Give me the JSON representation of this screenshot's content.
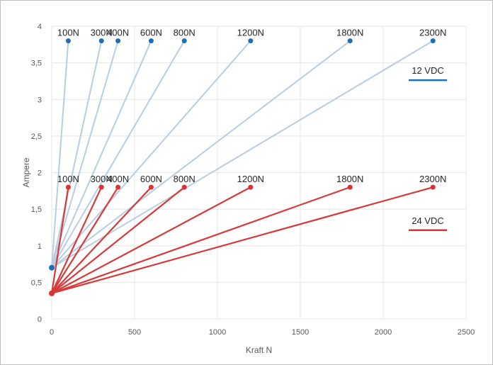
{
  "chart_data": {
    "type": "line",
    "title": "",
    "xlabel": "Kraft N",
    "ylabel": "Ampere",
    "xlim": [
      0,
      2500
    ],
    "ylim": [
      0,
      4
    ],
    "xticks": [
      0,
      500,
      1000,
      1500,
      2000,
      2500
    ],
    "yticks": [
      0,
      0.5,
      1,
      1.5,
      2,
      2.5,
      3,
      3.5,
      4
    ],
    "ytick_labels": [
      "0",
      "0,5",
      "1",
      "1,5",
      "2",
      "2,5",
      "3",
      "3,5",
      "4"
    ],
    "grid": true,
    "colors": {
      "12VDC": "#1f6fb5",
      "24VDC": "#e03030",
      "line12": "#b8cde0",
      "line24": "#d63a3a"
    },
    "series": [
      {
        "name": "12 VDC",
        "origin": [
          0,
          0.7
        ],
        "points": [
          {
            "label": "100N",
            "x": 100,
            "y": 3.8
          },
          {
            "label": "300N",
            "x": 300,
            "y": 3.8
          },
          {
            "label": "400N",
            "x": 400,
            "y": 3.8
          },
          {
            "label": "600N",
            "x": 600,
            "y": 3.8
          },
          {
            "label": "800N",
            "x": 800,
            "y": 3.8
          },
          {
            "label": "1200N",
            "x": 1200,
            "y": 3.8
          },
          {
            "label": "1800N",
            "x": 1800,
            "y": 3.8
          },
          {
            "label": "2300N",
            "x": 2300,
            "y": 3.8
          }
        ]
      },
      {
        "name": "24 VDC",
        "origin": [
          0,
          0.35
        ],
        "points": [
          {
            "label": "100N",
            "x": 100,
            "y": 1.8
          },
          {
            "label": "300N",
            "x": 300,
            "y": 1.8
          },
          {
            "label": "400N",
            "x": 400,
            "y": 1.8
          },
          {
            "label": "600N",
            "x": 600,
            "y": 1.8
          },
          {
            "label": "800N",
            "x": 800,
            "y": 1.8
          },
          {
            "label": "1200N",
            "x": 1200,
            "y": 1.8
          },
          {
            "label": "1800N",
            "x": 1800,
            "y": 1.8
          },
          {
            "label": "2300N",
            "x": 2300,
            "y": 1.8
          }
        ]
      }
    ]
  }
}
